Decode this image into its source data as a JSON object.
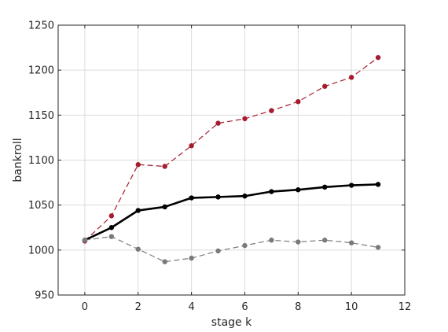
{
  "chart_data": {
    "type": "line",
    "xlabel": "stage k",
    "ylabel": "bankroll",
    "xlim": [
      -1,
      12
    ],
    "ylim": [
      950,
      1250
    ],
    "xticks": [
      0,
      2,
      4,
      6,
      8,
      10,
      12
    ],
    "yticks": [
      950,
      1000,
      1050,
      1100,
      1150,
      1200,
      1250
    ],
    "grid": true,
    "legend": "none",
    "x": [
      0,
      1,
      2,
      3,
      4,
      5,
      6,
      7,
      8,
      9,
      10,
      11
    ],
    "series": [
      {
        "color": "#a51c2e",
        "style": "dashed",
        "values": [
          1010,
          1038,
          1095,
          1093,
          1116,
          1141,
          1146,
          1155,
          1165,
          1182,
          1192,
          1214
        ]
      },
      {
        "color": "#000000",
        "style": "solid",
        "values": [
          1011,
          1025,
          1044,
          1048,
          1058,
          1059,
          1060,
          1065,
          1067,
          1070,
          1072,
          1073
        ]
      },
      {
        "color": "#7a7a7a",
        "style": "dashed",
        "values": [
          1011,
          1015,
          1001,
          987,
          991,
          999,
          1005,
          1011,
          1009,
          1011,
          1008,
          1003
        ]
      }
    ]
  }
}
